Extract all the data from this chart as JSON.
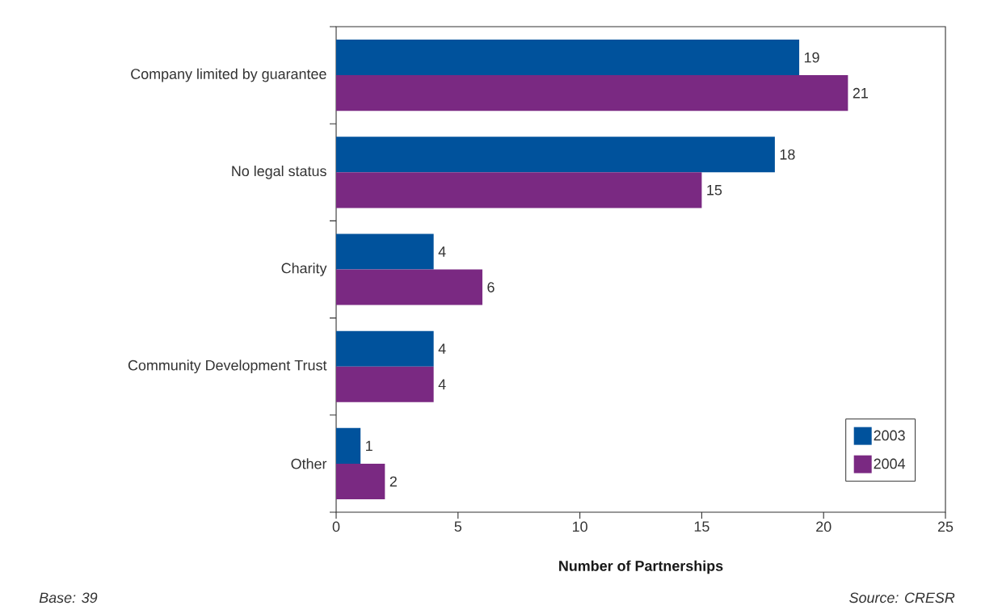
{
  "chart_data": {
    "type": "bar",
    "orientation": "horizontal",
    "categories": [
      "Company limited by guarantee",
      "No legal status",
      "Charity",
      "Community Development Trust",
      "Other"
    ],
    "series": [
      {
        "name": "2003",
        "color": "#00529c",
        "values": [
          19,
          18,
          4,
          4,
          1
        ]
      },
      {
        "name": "2004",
        "color": "#7a2982",
        "values": [
          21,
          15,
          6,
          4,
          2
        ]
      }
    ],
    "xlabel": "Number of Partnerships",
    "xlim": [
      0,
      25
    ],
    "xticks": [
      0,
      5,
      10,
      15,
      20,
      25
    ],
    "data_labels": true,
    "legend": "bottom right",
    "annotations": [
      "Base: 39",
      "Source: CRESR"
    ]
  }
}
